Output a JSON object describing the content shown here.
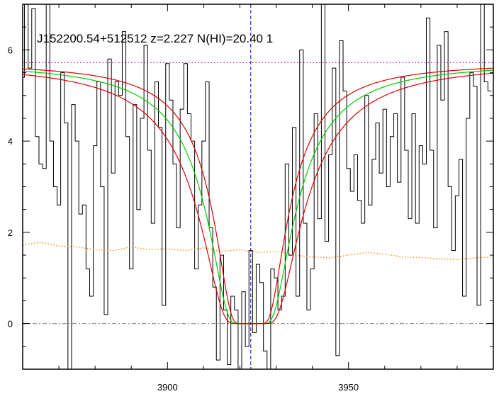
{
  "chart_data": {
    "type": "line",
    "title": "J152200.54+512512 z=2.227 N(HI)=20.40 1",
    "xlabel": "",
    "ylabel": "",
    "xlim": [
      3860,
      3990
    ],
    "ylim": [
      -1,
      7
    ],
    "xticks": [
      3900,
      3950
    ],
    "yticks": [
      0,
      2,
      4,
      6
    ],
    "grid": false,
    "continuum_level": 5.72,
    "zero_level": 0,
    "line_center": 3923,
    "colors": {
      "flux": "#000000",
      "fit": "#00cc00",
      "fit_bounds": "#dd0000",
      "continuum": "#cc00cc",
      "center": "#0000cc",
      "error": "#ff8800",
      "zero": "#888888"
    },
    "series": [
      {
        "role": "flux",
        "style": "steps",
        "x": [
          3860,
          3861,
          3862,
          3863,
          3864,
          3865,
          3866,
          3867,
          3868,
          3869,
          3870,
          3871,
          3872,
          3873,
          3874,
          3875,
          3876,
          3877,
          3878,
          3879,
          3880,
          3881,
          3882,
          3883,
          3884,
          3885,
          3886,
          3887,
          3888,
          3889,
          3890,
          3891,
          3892,
          3893,
          3894,
          3895,
          3896,
          3897,
          3898,
          3899,
          3900,
          3901,
          3902,
          3903,
          3904,
          3905,
          3906,
          3907,
          3908,
          3909,
          3910,
          3911,
          3912,
          3913,
          3914,
          3915,
          3916,
          3917,
          3918,
          3919,
          3920,
          3921,
          3922,
          3923,
          3924,
          3925,
          3926,
          3927,
          3928,
          3929,
          3930,
          3931,
          3932,
          3933,
          3934,
          3935,
          3936,
          3937,
          3938,
          3939,
          3940,
          3941,
          3942,
          3943,
          3944,
          3945,
          3946,
          3947,
          3948,
          3949,
          3950,
          3951,
          3952,
          3953,
          3954,
          3955,
          3956,
          3957,
          3958,
          3959,
          3960,
          3961,
          3962,
          3963,
          3964,
          3965,
          3966,
          3967,
          3968,
          3969,
          3970,
          3971,
          3972,
          3973,
          3974,
          3975,
          3976,
          3977,
          3978,
          3979,
          3980,
          3981,
          3982,
          3983,
          3984,
          3985,
          3986,
          3987,
          3988,
          3989
        ],
        "y": [
          5.4,
          7.0,
          5.6,
          6.9,
          4.1,
          3.5,
          3.4,
          7.0,
          4.0,
          3.0,
          2.6,
          5.5,
          4.4,
          -1.0,
          4.8,
          4.0,
          2.4,
          2.6,
          1.2,
          0.6,
          3.9,
          5.3,
          3.0,
          0.2,
          5.8,
          3.3,
          5.3,
          5.0,
          6.4,
          4.1,
          1.2,
          4.8,
          2.5,
          4.5,
          6.1,
          3.8,
          2.2,
          5.3,
          4.3,
          0.4,
          5.7,
          4.9,
          3.5,
          2.1,
          4.7,
          5.7,
          4.6,
          4.0,
          1.2,
          2.6,
          4.0,
          5.3,
          2.1,
          0.8,
          -0.8,
          1.5,
          0.3,
          -0.9,
          0.6,
          0.3,
          -1.1,
          0.7,
          -0.5,
          1.6,
          -0.2,
          1.3,
          0.9,
          -0.6,
          -1.2,
          1.2,
          1.0,
          0.3,
          0.6,
          3.5,
          1.5,
          4.3,
          0.6,
          6.0,
          2.2,
          0.3,
          1.2,
          4.6,
          2.3,
          7.0,
          1.8,
          3.7,
          5.6,
          -0.7,
          6.2,
          5.1,
          3.4,
          2.9,
          3.7,
          2.7,
          2.2,
          5.0,
          2.6,
          3.6,
          4.4,
          3.3,
          4.7,
          3.0,
          4.1,
          4.6,
          3.1,
          5.4,
          3.8,
          2.3,
          4.6,
          2.2,
          3.9,
          3.5,
          6.7,
          3.8,
          2.1,
          6.1,
          4.9,
          6.4,
          3.0,
          1.6,
          2.8,
          3.6,
          0.6,
          4.5,
          5.5,
          5.2,
          0.4,
          7.0,
          5.3,
          5.1
        ]
      },
      {
        "role": "error",
        "style": "dotted",
        "x": [
          3860,
          3865,
          3870,
          3875,
          3880,
          3885,
          3890,
          3895,
          3900,
          3905,
          3910,
          3915,
          3920,
          3925,
          3930,
          3935,
          3940,
          3945,
          3950,
          3955,
          3960,
          3965,
          3970,
          3975,
          3980,
          3985,
          3990
        ],
        "y": [
          1.72,
          1.78,
          1.7,
          1.68,
          1.62,
          1.6,
          1.68,
          1.62,
          1.64,
          1.6,
          1.66,
          1.58,
          1.62,
          1.56,
          1.58,
          1.5,
          1.46,
          1.44,
          1.5,
          1.56,
          1.52,
          1.46,
          1.45,
          1.42,
          1.4,
          1.44,
          1.46
        ]
      }
    ]
  }
}
